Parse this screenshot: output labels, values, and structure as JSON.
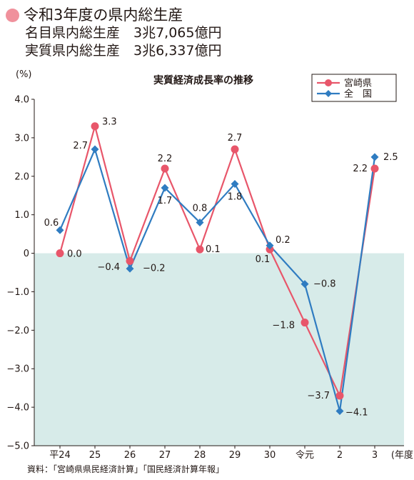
{
  "header": {
    "title": "令和3年度の県内総生産",
    "nominal": "名目県内総生産　3兆7,065億円",
    "real": "実質県内総生産　3兆6,337億円"
  },
  "colors": {
    "miyazaki": "#e8566a",
    "national": "#2f7cc1",
    "negative_fill": "#d7ebe9",
    "dot": "#f0919c"
  },
  "chart_data": {
    "type": "line",
    "title": "実質経済成長率の推移",
    "ylabel": "(%)",
    "xlabel": "(年度)",
    "ylim": [
      -5.0,
      4.0
    ],
    "yticks": [
      "4.0",
      "3.0",
      "2.0",
      "1.0",
      "0",
      "-1.0",
      "-2.0",
      "-3.0",
      "-4.0",
      "-5.0"
    ],
    "categories": [
      "平24",
      "25",
      "26",
      "27",
      "28",
      "29",
      "30",
      "令元",
      "2",
      "3"
    ],
    "series": [
      {
        "name": "宮崎県",
        "marker": "circle",
        "color": "#e8566a",
        "values": [
          0.0,
          3.3,
          -0.2,
          2.2,
          0.1,
          2.7,
          0.1,
          -1.8,
          -3.7,
          2.2
        ],
        "labels": [
          "0.0",
          "3.3",
          "−0.2",
          "2.2",
          "0.1",
          "2.7",
          "0.1",
          "−1.8",
          "−3.7",
          "2.2"
        ]
      },
      {
        "name": "全　国",
        "marker": "diamond",
        "color": "#2f7cc1",
        "values": [
          0.6,
          2.7,
          -0.4,
          1.7,
          0.8,
          1.8,
          0.2,
          -0.8,
          -4.1,
          2.5
        ],
        "labels": [
          "0.6",
          "2.7",
          "−0.4",
          "1.7",
          "0.8",
          "1.8",
          "0.2",
          "−0.8",
          "−4.1",
          "2.5"
        ]
      }
    ],
    "legend": "top-right",
    "source": "資料：「宮崎県県民経済計算」「国民経済計算年報」"
  }
}
